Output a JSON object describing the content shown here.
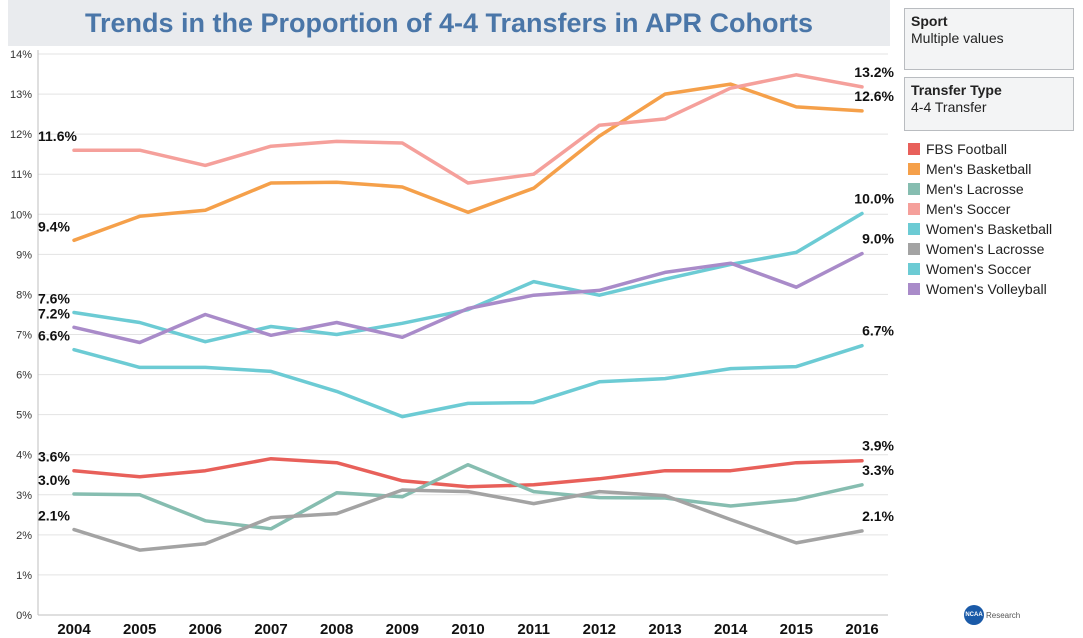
{
  "chart_data": {
    "type": "line",
    "title": "Trends in the Proportion of 4-4 Transfers in APR Cohorts",
    "x": [
      "2004",
      "2005",
      "2006",
      "2007",
      "2008",
      "2009",
      "2010",
      "2011",
      "2012",
      "2013",
      "2014",
      "2015",
      "2016"
    ],
    "ylim": [
      0,
      14
    ],
    "yticks": [
      "0%",
      "1%",
      "2%",
      "3%",
      "4%",
      "5%",
      "6%",
      "7%",
      "8%",
      "9%",
      "10%",
      "11%",
      "12%",
      "13%",
      "14%"
    ],
    "grid": "horizontal",
    "legend_position": "right",
    "series": [
      {
        "name": "FBS Football",
        "color": "#e8605a",
        "values": [
          3.6,
          3.45,
          3.6,
          3.9,
          3.8,
          3.35,
          3.2,
          3.25,
          3.4,
          3.6,
          3.6,
          3.8,
          3.85
        ],
        "start_label": "3.6%",
        "end_label": "3.9%"
      },
      {
        "name": "Men's Basketball",
        "color": "#f5a04a",
        "values": [
          9.35,
          9.95,
          10.1,
          10.78,
          10.8,
          10.68,
          10.05,
          10.65,
          11.95,
          13.0,
          13.25,
          12.68,
          12.58
        ],
        "start_label": "9.4%",
        "end_label": "12.6%"
      },
      {
        "name": "Men's Lacrosse",
        "color": "#86bdb0",
        "values": [
          3.02,
          3.0,
          2.35,
          2.15,
          3.05,
          2.95,
          3.75,
          3.08,
          2.93,
          2.92,
          2.72,
          2.88,
          3.25
        ],
        "start_label": "3.0%",
        "end_label": "3.3%"
      },
      {
        "name": "Men's Soccer",
        "color": "#f5a09b",
        "values": [
          11.6,
          11.6,
          11.22,
          11.7,
          11.82,
          11.78,
          10.78,
          11.0,
          12.22,
          12.38,
          13.15,
          13.48,
          13.18
        ],
        "start_label": "11.6%",
        "end_label": "13.2%"
      },
      {
        "name": "Women's Basketball",
        "color": "#6ccbd4",
        "values": [
          6.62,
          6.18,
          6.18,
          6.08,
          5.58,
          4.95,
          5.28,
          5.3,
          5.82,
          5.9,
          6.15,
          6.2,
          6.72
        ],
        "start_label": "6.6%",
        "end_label": "6.7%"
      },
      {
        "name": "Women's Lacrosse",
        "color": "#a3a3a3",
        "values": [
          2.13,
          1.62,
          1.78,
          2.43,
          2.53,
          3.12,
          3.08,
          2.78,
          3.08,
          2.98,
          2.38,
          1.8,
          2.1
        ],
        "start_label": "2.1%",
        "end_label": "2.1%"
      },
      {
        "name": "Women's Soccer",
        "color": "#6ccbd4",
        "values": [
          7.55,
          7.3,
          6.82,
          7.2,
          7.0,
          7.28,
          7.62,
          8.32,
          7.98,
          8.38,
          8.75,
          9.05,
          10.02
        ],
        "start_label": "7.6%",
        "end_label": "10.0%"
      },
      {
        "name": "Women's Volleyball",
        "color": "#a98bc9",
        "values": [
          7.18,
          6.8,
          7.5,
          6.98,
          7.3,
          6.93,
          7.65,
          7.98,
          8.1,
          8.55,
          8.78,
          8.18,
          9.02
        ],
        "start_label": "7.2%",
        "end_label": "9.0%"
      }
    ]
  },
  "filters": {
    "sport": {
      "title": "Sport",
      "value": "Multiple values"
    },
    "transfer_type": {
      "title": "Transfer Type",
      "value": "4-4 Transfer"
    }
  },
  "legend": {
    "items": [
      {
        "label": "FBS Football",
        "color": "#e8605a"
      },
      {
        "label": "Men's Basketball",
        "color": "#f5a04a"
      },
      {
        "label": "Men's Lacrosse",
        "color": "#86bdb0"
      },
      {
        "label": "Men's Soccer",
        "color": "#f5a09b"
      },
      {
        "label": "Women's Basketball",
        "color": "#6ccbd4"
      },
      {
        "label": "Women's Lacrosse",
        "color": "#a3a3a3"
      },
      {
        "label": "Women's Soccer",
        "color": "#6ccbd4"
      },
      {
        "label": "Women's Volleyball",
        "color": "#a98bc9"
      }
    ]
  },
  "logo": {
    "badge": "NCAA",
    "word": "Research",
    "icon": "ncaa-logo-icon"
  }
}
